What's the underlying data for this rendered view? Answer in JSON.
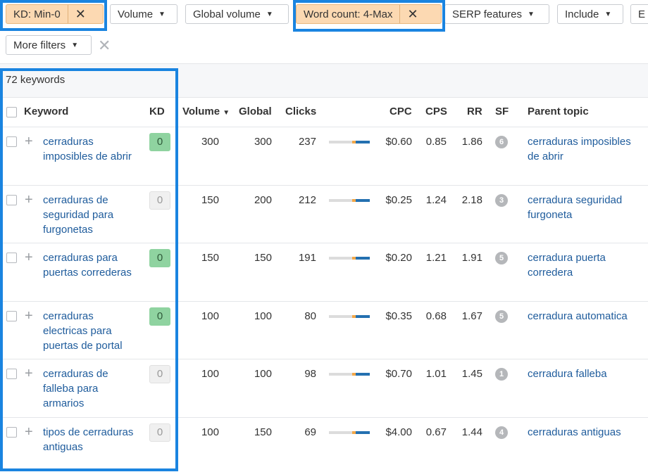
{
  "filters": {
    "kd": "KD: Min-0",
    "volume": "Volume",
    "global_volume": "Global volume",
    "word_count": "Word count: 4-Max",
    "serp_features": "SERP features",
    "include": "Include",
    "exclude": "E",
    "more": "More filters"
  },
  "summary": "72 keywords",
  "columns": {
    "keyword": "Keyword",
    "kd": "KD",
    "volume": "Volume",
    "global": "Global",
    "clicks": "Clicks",
    "cpc": "CPC",
    "cps": "CPS",
    "rr": "RR",
    "sf": "SF",
    "parent_topic": "Parent topic"
  },
  "rows": [
    {
      "keyword": "cerraduras imposibles de abrir",
      "kd": 0,
      "kd_color": "#8fd3a0",
      "volume": 300,
      "global": 300,
      "clicks": 237,
      "cpc": "$0.60",
      "cps": 0.85,
      "rr": 1.86,
      "sf": 6,
      "parent_topic": "cerraduras imposibles de abrir"
    },
    {
      "keyword": "cerraduras de seguridad para furgonetas",
      "kd": 0,
      "kd_color": "#f0f0f0",
      "volume": 150,
      "global": 200,
      "clicks": 212,
      "cpc": "$0.25",
      "cps": 1.24,
      "rr": 2.18,
      "sf": 3,
      "parent_topic": "cerradura seguridad furgoneta"
    },
    {
      "keyword": "cerraduras para puertas correderas",
      "kd": 0,
      "kd_color": "#8fd3a0",
      "volume": 150,
      "global": 150,
      "clicks": 191,
      "cpc": "$0.20",
      "cps": 1.21,
      "rr": 1.91,
      "sf": 5,
      "parent_topic": "cerradura puerta corredera"
    },
    {
      "keyword": "cerraduras electricas para puertas de portal",
      "kd": 0,
      "kd_color": "#8fd3a0",
      "volume": 100,
      "global": 100,
      "clicks": 80,
      "cpc": "$0.35",
      "cps": 0.68,
      "rr": 1.67,
      "sf": 5,
      "parent_topic": "cerradura automatica"
    },
    {
      "keyword": "cerraduras de falleba para armarios",
      "kd": 0,
      "kd_color": "#f0f0f0",
      "volume": 100,
      "global": 100,
      "clicks": 98,
      "cpc": "$0.70",
      "cps": 1.01,
      "rr": 1.45,
      "sf": 1,
      "parent_topic": "cerradura falleba"
    },
    {
      "keyword": "tipos de cerraduras antiguas",
      "kd": 0,
      "kd_color": "#f0f0f0",
      "volume": 100,
      "global": 150,
      "clicks": 69,
      "cpc": "$4.00",
      "cps": 0.67,
      "rr": 1.44,
      "sf": 4,
      "parent_topic": "cerraduras antiguas"
    }
  ]
}
